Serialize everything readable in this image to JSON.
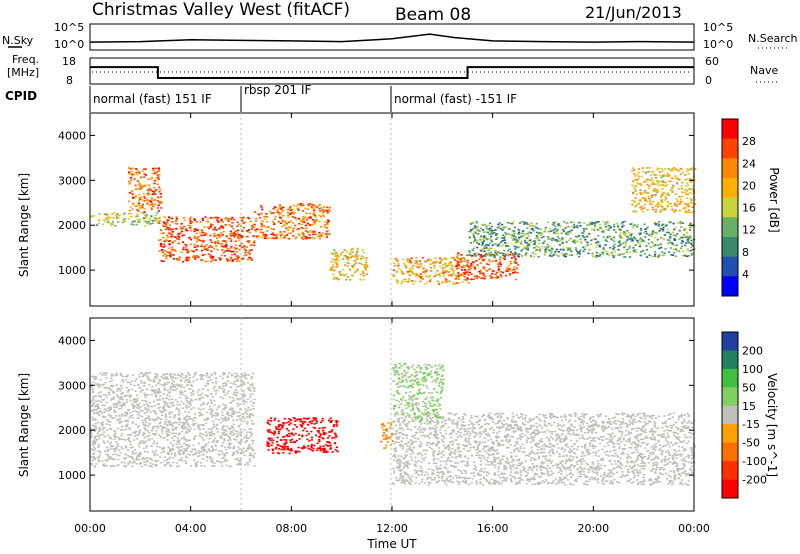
{
  "header": {
    "site": "Christmas Valley West (fitACF)",
    "beam": "Beam 08",
    "date": "21/Jun/2013"
  },
  "noise_panel": {
    "left_label": "N.Sky",
    "right_label": "N.Search",
    "left_ticks": [
      "10^5",
      "10^0"
    ],
    "right_ticks": [
      "10^5",
      "10^0"
    ]
  },
  "freq_panel": {
    "left_label_line1": "Freq.",
    "left_label_line2": "[MHz]",
    "right_label": "Nave",
    "left_ticks": [
      "18",
      "8"
    ],
    "right_ticks": [
      "60",
      "0"
    ]
  },
  "cpid": {
    "label": "CPID",
    "segments": [
      {
        "label": "normal (fast) 151 IF",
        "start_hour": 0
      },
      {
        "label": "rbsp 201 IF",
        "start_hour": 6
      },
      {
        "label": "normal (fast) -151 IF",
        "start_hour": 12
      }
    ]
  },
  "power_panel": {
    "ylabel": "Slant Range [km]",
    "colorbar_label": "Power [dB]",
    "colorbar_ticks": [
      "28",
      "24",
      "20",
      "16",
      "12",
      "8",
      "4"
    ],
    "colorbar_colors": [
      "#ff0000",
      "#ff4400",
      "#ff8800",
      "#ffb000",
      "#c8d43c",
      "#68b068",
      "#3a8a6a",
      "#2050b0",
      "#0000ff"
    ]
  },
  "velocity_panel": {
    "ylabel": "Slant Range [km]",
    "colorbar_label": "Velocity [m s^-1]",
    "colorbar_ticks": [
      "200",
      "100",
      "50",
      "15",
      "-15",
      "-50",
      "-100",
      "-200"
    ],
    "colorbar_colors": [
      "#2040a0",
      "#208060",
      "#40c040",
      "#80d060",
      "#c0c0b8",
      "#ffa000",
      "#ff7000",
      "#ff3000",
      "#ff0000"
    ]
  },
  "x_axis": {
    "label": "Time UT",
    "ticks": [
      "00:00",
      "04:00",
      "08:00",
      "12:00",
      "16:00",
      "20:00",
      "00:00"
    ]
  },
  "chart_data": [
    {
      "type": "line",
      "title": "Christmas Valley West (fitACF)",
      "panel": "noise",
      "ylabel": "N.Sky",
      "x_range_hours": [
        0,
        24
      ],
      "series": [
        {
          "name": "N.Sky",
          "x": [
            0,
            2,
            4,
            6,
            8,
            10,
            12,
            13.5,
            14.5,
            16,
            18,
            20,
            22,
            24
          ],
          "values": [
            30,
            40,
            120,
            80,
            60,
            40,
            200,
            3000,
            400,
            60,
            40,
            30,
            40,
            30
          ]
        }
      ]
    },
    {
      "type": "line",
      "panel": "frequency",
      "ylabel": "Freq. [MHz]",
      "y_range": [
        8,
        18
      ],
      "x": [
        0,
        2.7,
        2.7,
        15,
        15,
        24
      ],
      "values": [
        14.5,
        14.5,
        10.3,
        10.3,
        14.5,
        14.5
      ]
    },
    {
      "type": "heatmap",
      "panel": "power",
      "ylabel": "Slant Range [km]",
      "xlabel": "Time UT",
      "x_range_hours": [
        0,
        24
      ],
      "ylim": [
        200,
        4500
      ],
      "zlabel": "Power [dB]",
      "z_range": [
        0,
        30
      ],
      "yticks": [
        1000,
        2000,
        3000,
        4000
      ],
      "features": [
        {
          "t_start": 0,
          "t_end": 2.7,
          "range_start": 2000,
          "range_end": 2300,
          "power_db": 14
        },
        {
          "t_start": 1.5,
          "t_end": 2.8,
          "range_start": 2300,
          "range_end": 3300,
          "power_db": 24
        },
        {
          "t_start": 2.7,
          "t_end": 6.5,
          "range_start": 1200,
          "range_end": 2200,
          "power_db": 26
        },
        {
          "t_start": 6.5,
          "t_end": 9.5,
          "range_start": 1700,
          "range_end": 2500,
          "power_db": 24
        },
        {
          "t_start": 9.5,
          "t_end": 11,
          "range_start": 800,
          "range_end": 1500,
          "power_db": 18
        },
        {
          "t_start": 12,
          "t_end": 15,
          "range_start": 700,
          "range_end": 1300,
          "power_db": 20
        },
        {
          "t_start": 14.5,
          "t_end": 17,
          "range_start": 800,
          "range_end": 1400,
          "power_db": 26
        },
        {
          "t_start": 15,
          "t_end": 24,
          "range_start": 1300,
          "range_end": 2100,
          "power_db": 10
        },
        {
          "t_start": 21.5,
          "t_end": 24,
          "range_start": 2300,
          "range_end": 3300,
          "power_db": 18
        }
      ]
    },
    {
      "type": "heatmap",
      "panel": "velocity",
      "ylabel": "Slant Range [km]",
      "xlabel": "Time UT",
      "x_range_hours": [
        0,
        24
      ],
      "ylim": [
        200,
        4500
      ],
      "zlabel": "Velocity [m s^-1]",
      "z_range": [
        -200,
        200
      ],
      "yticks": [
        1000,
        2000,
        3000,
        4000
      ],
      "features": [
        {
          "t_start": 0,
          "t_end": 6.5,
          "range_start": 1200,
          "range_end": 3300,
          "velocity": -5
        },
        {
          "t_start": 7,
          "t_end": 9.8,
          "range_start": 1500,
          "range_end": 2300,
          "velocity": -200
        },
        {
          "t_start": 11.5,
          "t_end": 12,
          "range_start": 1600,
          "range_end": 2200,
          "velocity": -70
        },
        {
          "t_start": 12,
          "t_end": 24,
          "range_start": 800,
          "range_end": 2400,
          "velocity": 0
        },
        {
          "t_start": 12,
          "t_end": 14,
          "range_start": 2200,
          "range_end": 3500,
          "velocity": 30
        }
      ]
    }
  ]
}
